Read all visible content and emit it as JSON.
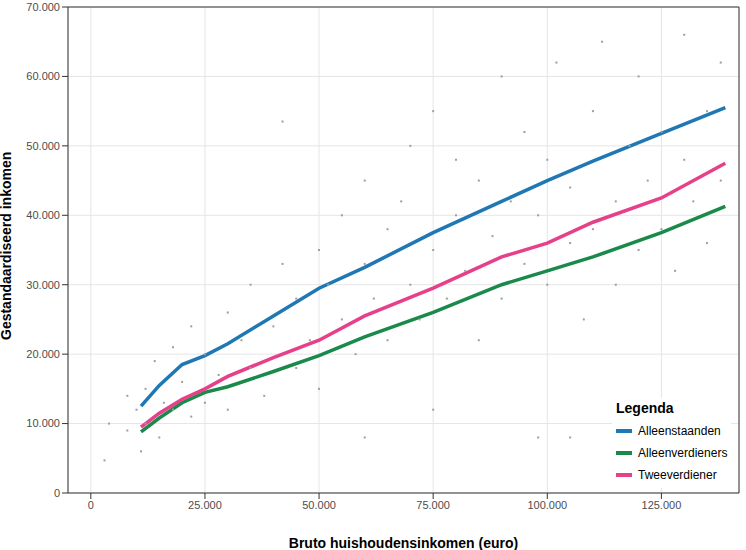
{
  "chart_data": {
    "type": "scatter",
    "x_label": "Bruto huishoudensinkomen (euro)",
    "y_label": "Gestandaardiseerd inkomen",
    "legend_title": "Legenda",
    "legend": "lower right",
    "grid": true,
    "xlim": [
      -5000,
      142000
    ],
    "xticks": [
      0,
      {
        "value": 25000,
        "label": "25.000"
      },
      {
        "value": 50000,
        "label": "50.000"
      },
      {
        "value": 75000,
        "label": "75.000"
      },
      {
        "value": 100000,
        "label": "100.000"
      },
      {
        "value": 125000,
        "label": "125.000"
      }
    ],
    "ylim": [
      0,
      70000
    ],
    "yticks": [
      0,
      {
        "value": 10000,
        "label": "10.000"
      },
      {
        "value": 20000,
        "label": "20.000"
      },
      {
        "value": 30000,
        "label": "30.000"
      },
      {
        "value": 40000,
        "label": "40.000"
      },
      {
        "value": 50000,
        "label": "50.000"
      },
      {
        "value": 60000,
        "label": "60.000"
      },
      {
        "value": 70000,
        "label": "70.000"
      }
    ],
    "points": {
      "color": "#9e9e9e",
      "marker": "square",
      "x": [
        3000,
        4000,
        8000,
        8000,
        10000,
        11000,
        12000,
        12000,
        14000,
        15000,
        16000,
        18000,
        18000,
        20000,
        22000,
        22000,
        25000,
        25000,
        28000,
        30000,
        30000,
        33000,
        35000,
        35000,
        38000,
        40000,
        42000,
        42000,
        45000,
        45000,
        48000,
        50000,
        50000,
        52000,
        55000,
        55000,
        58000,
        60000,
        60000,
        62000,
        65000,
        65000,
        68000,
        70000,
        70000,
        72000,
        75000,
        75000,
        78000,
        80000,
        80000,
        82000,
        85000,
        85000,
        88000,
        90000,
        90000,
        92000,
        95000,
        95000,
        98000,
        98000,
        100000,
        100000,
        102000,
        105000,
        105000,
        108000,
        110000,
        110000,
        112000,
        115000,
        115000,
        118000,
        120000,
        120000,
        122000,
        125000,
        125000,
        128000,
        130000,
        130000,
        132000,
        135000,
        135000,
        138000,
        138000,
        105000,
        60000,
        75000
      ],
      "y": [
        4700,
        10000,
        9000,
        14000,
        12000,
        6000,
        15000,
        10000,
        19000,
        8000,
        13000,
        21000,
        12000,
        16000,
        11000,
        24000,
        20000,
        13000,
        17000,
        26000,
        12000,
        22000,
        18000,
        30000,
        14000,
        24000,
        33000,
        53500,
        18000,
        28000,
        22000,
        35000,
        15000,
        30000,
        25000,
        40000,
        20000,
        33000,
        45000,
        28000,
        22000,
        38000,
        42000,
        30000,
        50000,
        25000,
        35000,
        55000,
        28000,
        40000,
        48000,
        32000,
        22000,
        45000,
        37000,
        60000,
        28000,
        42000,
        33000,
        52000,
        8000,
        40000,
        30000,
        48000,
        62000,
        36000,
        44000,
        25000,
        55000,
        38000,
        65000,
        42000,
        30000,
        50000,
        35000,
        60000,
        45000,
        38000,
        52000,
        32000,
        48000,
        66000,
        42000,
        55000,
        36000,
        45000,
        62000,
        8000,
        8000,
        12000
      ]
    },
    "x": [
      11000,
      15000,
      20000,
      25000,
      30000,
      40000,
      50000,
      60000,
      75000,
      90000,
      100000,
      110000,
      125000,
      139000
    ],
    "series": [
      {
        "name": "Alleenstaanden",
        "color": "#1f78b4",
        "type": "line",
        "values": [
          12500,
          15500,
          18500,
          19800,
          21500,
          25500,
          29500,
          32500,
          37500,
          42000,
          45000,
          47800,
          51800,
          55500
        ]
      },
      {
        "name": "Alleenverdieners",
        "color": "#1a8a4a",
        "type": "line",
        "values": [
          8800,
          10800,
          13000,
          14500,
          15300,
          17500,
          19800,
          22500,
          26000,
          30000,
          32000,
          34000,
          37500,
          41300
        ]
      },
      {
        "name": "Tweeverdiener",
        "color": "#e6408a",
        "type": "line",
        "values": [
          9500,
          11500,
          13500,
          15000,
          16800,
          19500,
          22000,
          25500,
          29500,
          34000,
          36000,
          39000,
          42500,
          47500
        ]
      }
    ]
  }
}
